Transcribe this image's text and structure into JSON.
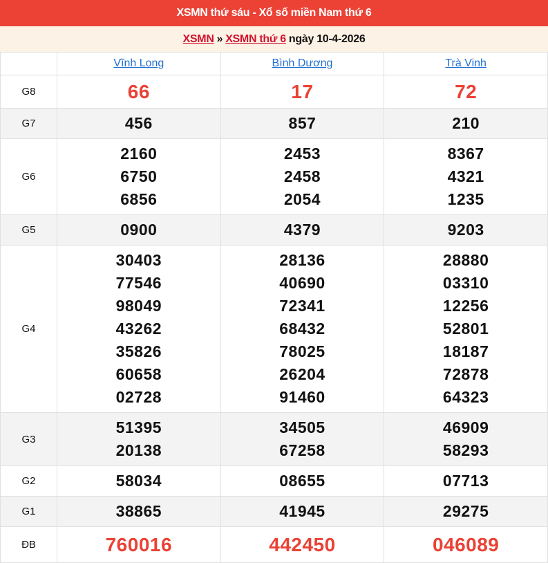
{
  "header": {
    "title": "XSMN thứ sáu - Xổ số miền Nam thứ 6"
  },
  "breadcrumb": {
    "link1": "XSMN",
    "separator": "»",
    "link2": "XSMN thứ 6",
    "suffix": "ngày 10-4-2026"
  },
  "provinces": [
    "Vĩnh Long",
    "Bình Dương",
    "Trà Vinh"
  ],
  "colors": {
    "header_bg": "#ec4236",
    "highlight": "#e94235",
    "link": "#1f6fd1"
  },
  "prizes": [
    {
      "label": "G8",
      "big": true,
      "values": [
        [
          "66"
        ],
        [
          "17"
        ],
        [
          "72"
        ]
      ]
    },
    {
      "label": "G7",
      "values": [
        [
          "456"
        ],
        [
          "857"
        ],
        [
          "210"
        ]
      ]
    },
    {
      "label": "G6",
      "values": [
        [
          "2160",
          "6750",
          "6856"
        ],
        [
          "2453",
          "2458",
          "2054"
        ],
        [
          "8367",
          "4321",
          "1235"
        ]
      ]
    },
    {
      "label": "G5",
      "values": [
        [
          "0900"
        ],
        [
          "4379"
        ],
        [
          "9203"
        ]
      ]
    },
    {
      "label": "G4",
      "values": [
        [
          "30403",
          "77546",
          "98049",
          "43262",
          "35826",
          "60658",
          "02728"
        ],
        [
          "28136",
          "40690",
          "72341",
          "68432",
          "78025",
          "26204",
          "91460"
        ],
        [
          "28880",
          "03310",
          "12256",
          "52801",
          "18187",
          "72878",
          "64323"
        ]
      ]
    },
    {
      "label": "G3",
      "values": [
        [
          "51395",
          "20138"
        ],
        [
          "34505",
          "67258"
        ],
        [
          "46909",
          "58293"
        ]
      ]
    },
    {
      "label": "G2",
      "values": [
        [
          "58034"
        ],
        [
          "08655"
        ],
        [
          "07713"
        ]
      ]
    },
    {
      "label": "G1",
      "values": [
        [
          "38865"
        ],
        [
          "41945"
        ],
        [
          "29275"
        ]
      ]
    },
    {
      "label": "ĐB",
      "big": true,
      "values": [
        [
          "760016"
        ],
        [
          "442450"
        ],
        [
          "046089"
        ]
      ]
    }
  ]
}
